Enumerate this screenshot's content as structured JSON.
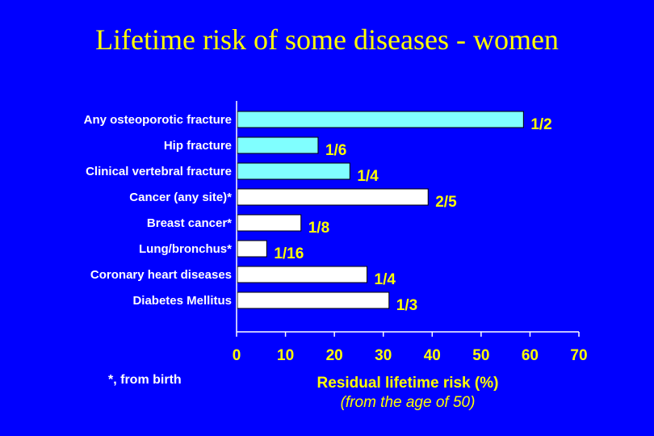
{
  "chart_data": {
    "type": "bar",
    "orientation": "horizontal",
    "title": "Lifetime risk of some diseases - women",
    "categories": [
      "Any osteoporotic fracture",
      "Hip fracture",
      "Clinical vertebral fracture",
      "Cancer (any site)*",
      "Breast cancer*",
      "Lung/bronchus*",
      "Coronary heart diseases",
      "Diabetes Mellitus"
    ],
    "values": [
      58.5,
      16.5,
      23,
      39,
      13,
      6,
      26.5,
      31
    ],
    "data_labels": [
      "1/2",
      "1/6",
      "1/4",
      "2/5",
      "1/8",
      "1/16",
      "1/4",
      "1/3"
    ],
    "bar_colors": [
      "#80FFFF",
      "#80FFFF",
      "#80FFFF",
      "#FFFFFF",
      "#FFFFFF",
      "#FFFFFF",
      "#FFFFFF",
      "#FFFFFF"
    ],
    "xlabel": "Residual lifetime risk (%)",
    "xlabel_sub": "(from the age of 50)",
    "xlim": [
      0,
      70
    ],
    "xticks": [
      "0",
      "10",
      "20",
      "30",
      "40",
      "50",
      "60",
      "70"
    ],
    "footnote": "*, from birth"
  },
  "colors": {
    "background": "#0000FF",
    "title": "#FFFF00",
    "text": "#FFFFFF",
    "data_label": "#FFFF00",
    "axis": "#FFFFFF"
  }
}
